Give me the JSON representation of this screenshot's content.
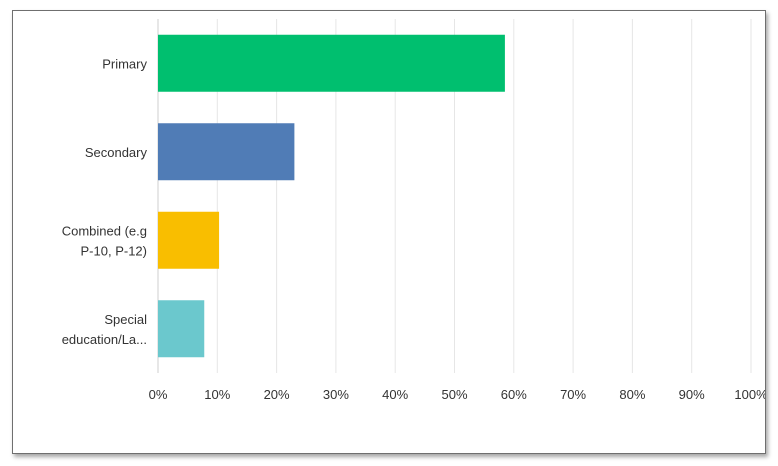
{
  "chart_data": {
    "type": "bar",
    "orientation": "horizontal",
    "categories": [
      [
        "Primary"
      ],
      [
        "Secondary"
      ],
      [
        "Combined (e.g",
        "P-10, P-12)"
      ],
      [
        "Special",
        "education/La..."
      ]
    ],
    "values": [
      58.5,
      23.0,
      10.3,
      7.8
    ],
    "colors": [
      "#00bf6f",
      "#507cb6",
      "#f9be00",
      "#6bc8cd"
    ],
    "xticks": [
      "0%",
      "10%",
      "20%",
      "30%",
      "40%",
      "50%",
      "60%",
      "70%",
      "80%",
      "90%",
      "100%"
    ],
    "xlim": [
      0,
      100
    ],
    "grid": true,
    "title": "",
    "xlabel": "",
    "ylabel": ""
  }
}
